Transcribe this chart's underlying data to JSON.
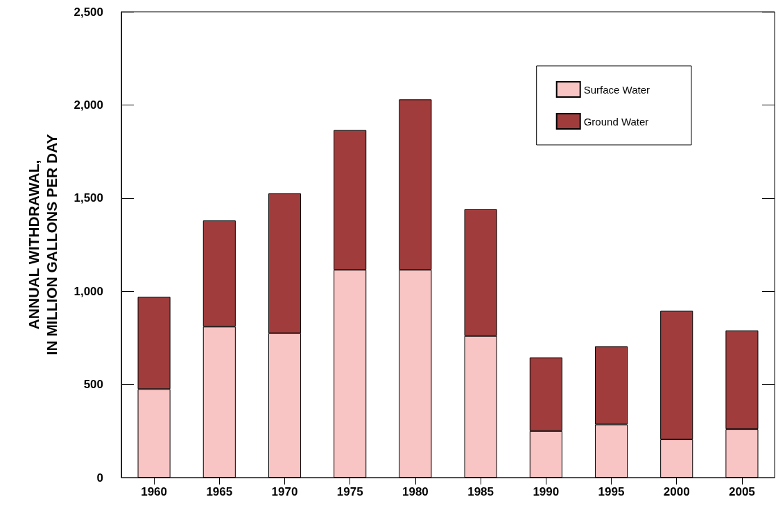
{
  "chart_data": {
    "type": "bar",
    "stacked": true,
    "ylabel": "ANNUAL WITHDRAWAL,\nIN MILLION GALLONS PER DAY",
    "categories": [
      "1960",
      "1965",
      "1970",
      "1975",
      "1980",
      "1985",
      "1990",
      "1995",
      "2000",
      "2005"
    ],
    "series": [
      {
        "name": "Surface Water",
        "color": "#f9c4c4",
        "values": [
          475,
          810,
          775,
          1115,
          1115,
          760,
          250,
          285,
          205,
          260
        ]
      },
      {
        "name": "Ground Water",
        "color": "#a03c3c",
        "values": [
          495,
          570,
          750,
          750,
          915,
          680,
          395,
          420,
          690,
          530
        ]
      }
    ],
    "ylim": [
      0,
      2500
    ],
    "yticks": [
      0,
      500,
      {
        "value": 1000,
        "label": "1,000"
      },
      {
        "value": 1500,
        "label": "1,500"
      },
      {
        "value": 2000,
        "label": "2,000"
      },
      {
        "value": 2500,
        "label": "2,500"
      }
    ],
    "grid": false,
    "legend": "top right"
  }
}
